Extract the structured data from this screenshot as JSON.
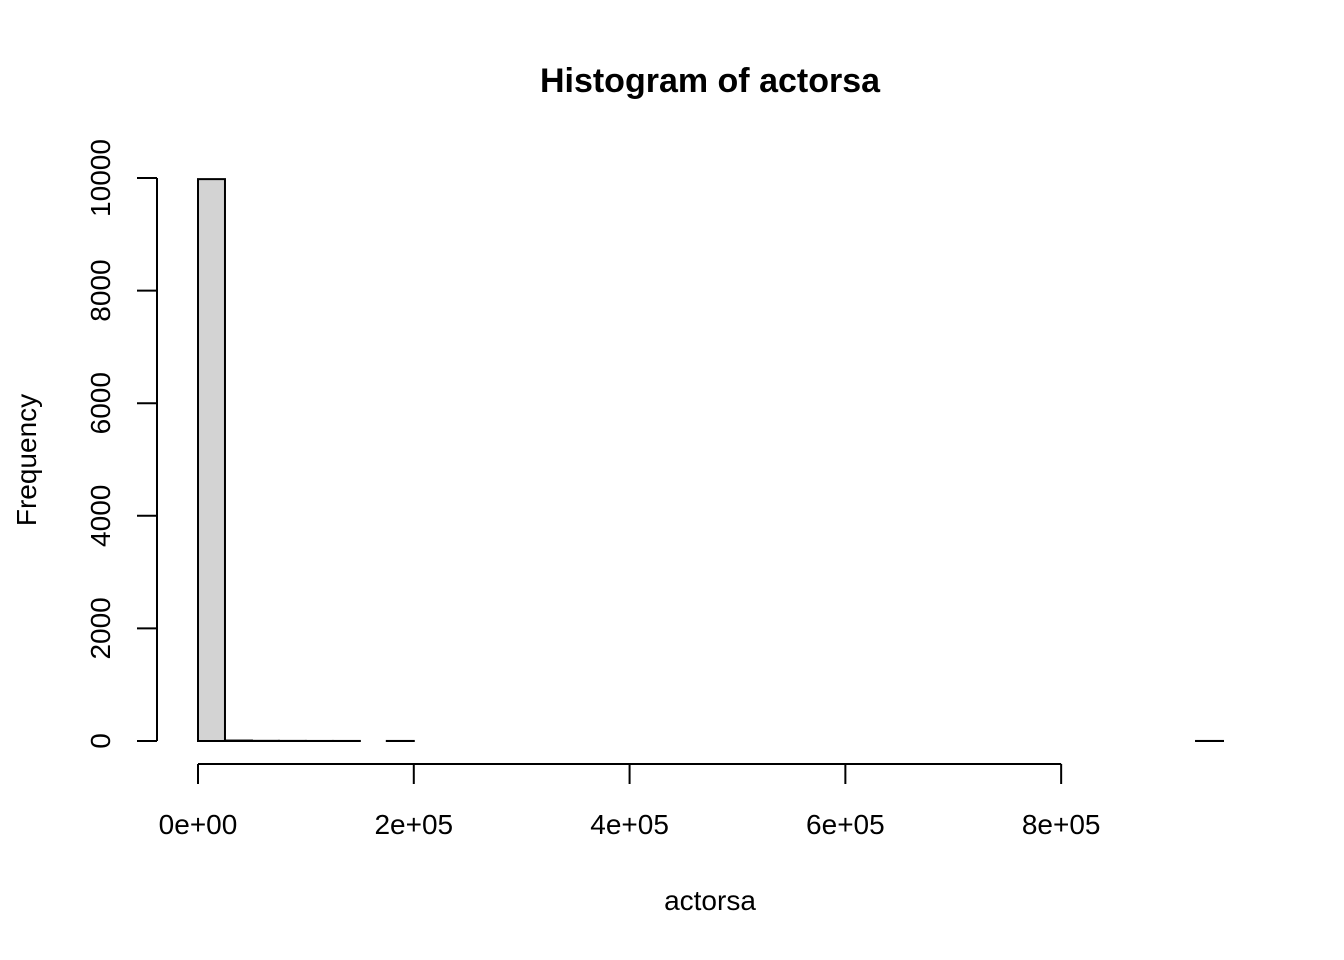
{
  "chart_data": {
    "type": "bar",
    "title": "Histogram of actorsa",
    "xlabel": "actorsa",
    "ylabel": "Frequency",
    "bin_edges": [
      0,
      25000,
      50000,
      75000,
      100000,
      125000,
      150000,
      175000,
      200000,
      225000,
      250000,
      275000,
      300000,
      325000,
      350000,
      375000,
      400000,
      425000,
      450000,
      475000,
      500000,
      525000,
      550000,
      575000,
      600000,
      625000,
      650000,
      675000,
      700000,
      725000,
      750000,
      775000,
      800000,
      825000,
      850000,
      875000,
      900000,
      925000,
      950000
    ],
    "counts": [
      9980,
      8,
      3,
      2,
      1,
      1,
      0,
      1,
      0,
      0,
      0,
      0,
      0,
      0,
      0,
      0,
      0,
      0,
      0,
      0,
      0,
      0,
      0,
      0,
      0,
      0,
      0,
      0,
      0,
      0,
      0,
      0,
      0,
      0,
      0,
      0,
      0,
      1
    ],
    "xlim": [
      0,
      950000
    ],
    "ylim": [
      0,
      10000
    ],
    "x_ticks": [
      0,
      200000,
      400000,
      600000,
      800000
    ],
    "x_tick_labels": [
      "0e+00",
      "2e+05",
      "4e+05",
      "6e+05",
      "8e+05"
    ],
    "y_ticks": [
      0,
      2000,
      4000,
      6000,
      8000,
      10000
    ],
    "y_tick_labels": [
      "0",
      "2000",
      "4000",
      "6000",
      "8000",
      "10000"
    ],
    "colors": {
      "bar_fill": "#d3d3d3",
      "bar_stroke": "#000000"
    }
  }
}
